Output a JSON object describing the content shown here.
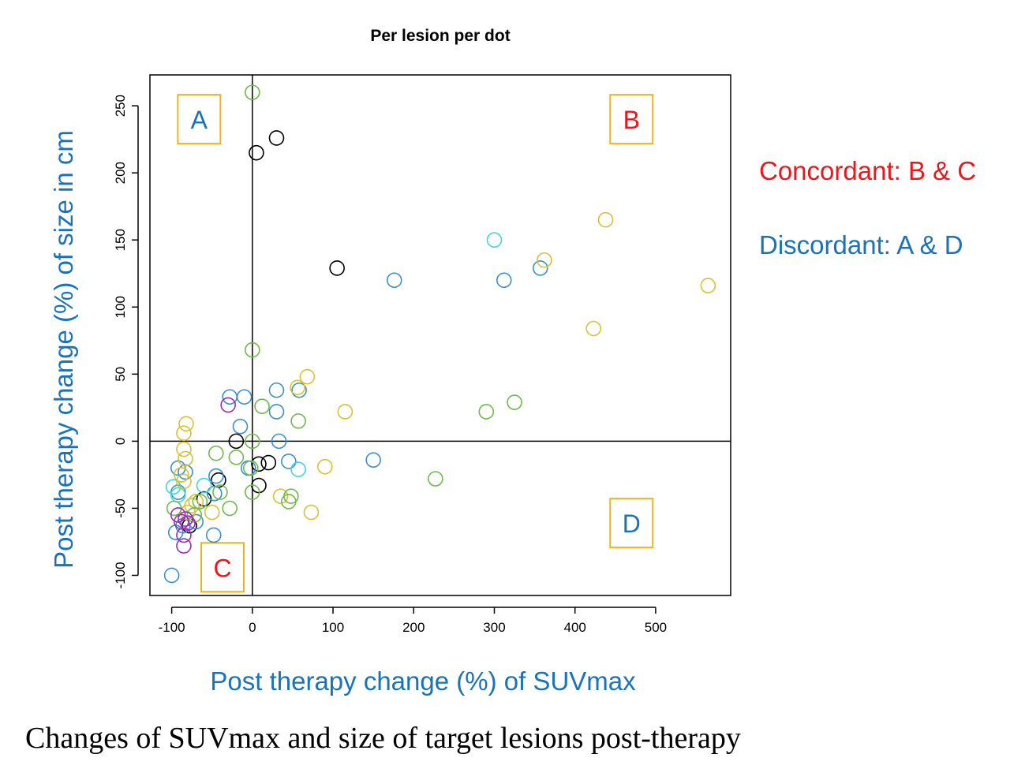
{
  "caption": "Changes of SUVmax and size of target lesions post-therapy",
  "side_notes": {
    "concordant": {
      "text": "Concordant: B & C",
      "color": "#e8191d"
    },
    "discordant": {
      "text": "Discordant: A & D",
      "color": "#1a73b8"
    }
  },
  "chart_data": {
    "type": "scatter",
    "title": "Per lesion per dot",
    "xlabel": "Post therapy change (%) of SUVmax",
    "ylabel": "Post therapy change (%) of size in cm",
    "xlim": [
      -127,
      593
    ],
    "ylim": [
      -115,
      273
    ],
    "x_ticks": [
      -100,
      0,
      100,
      200,
      300,
      400,
      500
    ],
    "y_ticks": [
      -100,
      -50,
      0,
      50,
      100,
      150,
      200,
      250
    ],
    "reference_lines": {
      "x": 0,
      "y": 0
    },
    "grid": false,
    "quadrants": [
      {
        "label": "A",
        "color": "#1a73b8",
        "box_color": "#f0b31e",
        "x": -66,
        "y": 240
      },
      {
        "label": "B",
        "color": "#e8191d",
        "box_color": "#f0b31e",
        "x": 470,
        "y": 240
      },
      {
        "label": "C",
        "color": "#e8191d",
        "box_color": "#f0b31e",
        "x": -37,
        "y": -94
      },
      {
        "label": "D",
        "color": "#1a73b8",
        "box_color": "#f0b31e",
        "x": 470,
        "y": -61
      }
    ],
    "series": [
      {
        "color": "#000000",
        "points": [
          [
            5,
            215
          ],
          [
            30,
            226
          ],
          [
            105,
            129
          ],
          [
            -20,
            0
          ],
          [
            -42,
            -29
          ],
          [
            -60,
            -43
          ],
          [
            -78,
            -63
          ],
          [
            8,
            -17
          ],
          [
            20,
            -16
          ],
          [
            8,
            -33
          ]
        ]
      },
      {
        "color": "#3a8fd0",
        "points": [
          [
            176,
            120
          ],
          [
            312,
            120
          ],
          [
            357,
            129
          ],
          [
            30,
            38
          ],
          [
            58,
            38
          ],
          [
            30,
            22
          ],
          [
            -28,
            33
          ],
          [
            -10,
            33
          ],
          [
            -15,
            11
          ],
          [
            33,
            0
          ],
          [
            150,
            -14
          ],
          [
            45,
            -15
          ],
          [
            -5,
            -20
          ],
          [
            -45,
            -26
          ],
          [
            -100,
            -100
          ],
          [
            -48,
            -70
          ],
          [
            -95,
            -68
          ],
          [
            -92,
            -38
          ],
          [
            -92,
            -20
          ],
          [
            -86,
            -63
          ],
          [
            -70,
            -60
          ],
          [
            -47,
            -39
          ],
          [
            -83,
            -23
          ]
        ]
      },
      {
        "color": "#40d4e0",
        "points": [
          [
            300,
            150
          ],
          [
            57,
            -21
          ],
          [
            -98,
            -34
          ],
          [
            -92,
            -40
          ],
          [
            -60,
            -33
          ]
        ]
      },
      {
        "color": "#d9c035",
        "points": [
          [
            438,
            165
          ],
          [
            362,
            135
          ],
          [
            565,
            116
          ],
          [
            423,
            84
          ],
          [
            68,
            48
          ],
          [
            56,
            40
          ],
          [
            115,
            22
          ],
          [
            -82,
            13
          ],
          [
            -85,
            6
          ],
          [
            -85,
            -6
          ],
          [
            -83,
            -13
          ],
          [
            -88,
            -25
          ],
          [
            -85,
            -30
          ],
          [
            90,
            -19
          ],
          [
            35,
            -41
          ],
          [
            73,
            -53
          ],
          [
            -70,
            -45
          ],
          [
            -80,
            -53
          ],
          [
            -75,
            -48
          ],
          [
            -50,
            -53
          ]
        ]
      },
      {
        "color": "#6dbb4b",
        "points": [
          [
            0,
            260
          ],
          [
            0,
            68
          ],
          [
            12,
            26
          ],
          [
            57,
            15
          ],
          [
            0,
            0
          ],
          [
            -45,
            -9
          ],
          [
            -20,
            -12
          ],
          [
            -2,
            -20
          ],
          [
            0,
            -38
          ],
          [
            227,
            -28
          ],
          [
            290,
            22
          ],
          [
            325,
            29
          ],
          [
            48,
            -41
          ],
          [
            45,
            -45
          ],
          [
            -28,
            -50
          ],
          [
            -97,
            -50
          ],
          [
            -40,
            -38
          ],
          [
            -65,
            -45
          ],
          [
            -72,
            -55
          ]
        ]
      },
      {
        "color": "#9a2fb5",
        "points": [
          [
            -30,
            27
          ],
          [
            -92,
            -55
          ],
          [
            -88,
            -60
          ],
          [
            -85,
            -70
          ],
          [
            -85,
            -78
          ],
          [
            -83,
            -58
          ],
          [
            -80,
            -61
          ]
        ]
      }
    ]
  }
}
